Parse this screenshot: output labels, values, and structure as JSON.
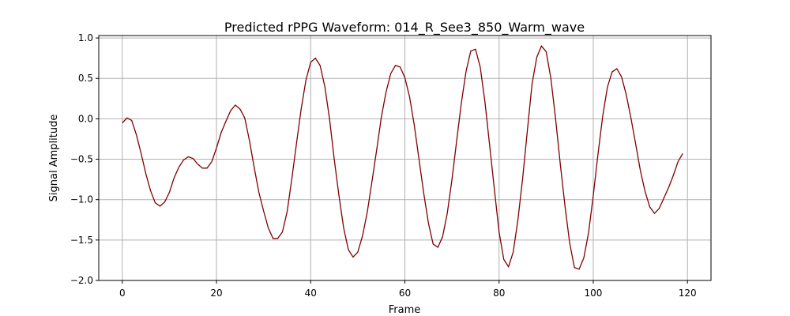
{
  "chart_data": {
    "type": "line",
    "title": "Predicted rPPG Waveform: 014_R_See3_850_Warm_wave",
    "xlabel": "Frame",
    "ylabel": "Signal Amplitude",
    "xlim": [
      -5,
      125
    ],
    "ylim": [
      -2.0,
      1.03
    ],
    "xticks": [
      0,
      20,
      40,
      60,
      80,
      100,
      120
    ],
    "xtick_labels": [
      "0",
      "20",
      "40",
      "60",
      "80",
      "100",
      "120"
    ],
    "yticks": [
      -2.0,
      -1.5,
      -1.0,
      -0.5,
      0.0,
      0.5,
      1.0
    ],
    "ytick_labels": [
      "−2.0",
      "−1.5",
      "−1.0",
      "−0.5",
      "0.0",
      "0.5",
      "1.0"
    ],
    "grid": true,
    "line_color": "#800000",
    "series": [
      {
        "x": [
          0,
          1,
          2,
          3,
          4,
          5,
          6,
          7,
          8,
          9,
          10,
          11,
          12,
          13,
          14,
          15,
          16,
          17,
          18,
          19,
          20,
          21,
          22,
          23,
          24,
          25,
          26,
          27,
          28,
          29,
          30,
          31,
          32,
          33,
          34,
          35,
          36,
          37,
          38,
          39,
          40,
          41,
          42,
          43,
          44,
          45,
          46,
          47,
          48,
          49,
          50,
          51,
          52,
          53,
          54,
          55,
          56,
          57,
          58,
          59,
          60,
          61,
          62,
          63,
          64,
          65,
          66,
          67,
          68,
          69,
          70,
          71,
          72,
          73,
          74,
          75,
          76,
          77,
          78,
          79,
          80,
          81,
          82,
          83,
          84,
          85,
          86,
          87,
          88,
          89,
          90,
          91,
          92,
          93,
          94,
          95,
          96,
          97,
          98,
          99,
          100,
          101,
          102,
          103,
          104,
          105,
          106,
          107,
          108,
          109,
          110,
          111,
          112,
          113,
          114,
          115,
          116,
          117,
          118,
          119
        ],
        "y": [
          -0.05,
          0.01,
          -0.02,
          -0.2,
          -0.43,
          -0.68,
          -0.89,
          -1.04,
          -1.08,
          -1.03,
          -0.91,
          -0.73,
          -0.6,
          -0.51,
          -0.47,
          -0.49,
          -0.56,
          -0.61,
          -0.61,
          -0.53,
          -0.36,
          -0.17,
          -0.03,
          0.1,
          0.17,
          0.12,
          0.01,
          -0.27,
          -0.6,
          -0.91,
          -1.14,
          -1.35,
          -1.48,
          -1.48,
          -1.4,
          -1.15,
          -0.74,
          -0.3,
          0.13,
          0.48,
          0.7,
          0.75,
          0.66,
          0.4,
          0.0,
          -0.5,
          -0.95,
          -1.35,
          -1.62,
          -1.71,
          -1.65,
          -1.45,
          -1.16,
          -0.78,
          -0.39,
          0.02,
          0.33,
          0.56,
          0.66,
          0.64,
          0.51,
          0.27,
          -0.08,
          -0.5,
          -0.92,
          -1.29,
          -1.55,
          -1.59,
          -1.46,
          -1.17,
          -0.75,
          -0.27,
          0.2,
          0.59,
          0.84,
          0.86,
          0.64,
          0.21,
          -0.33,
          -0.87,
          -1.4,
          -1.74,
          -1.83,
          -1.65,
          -1.25,
          -0.74,
          -0.15,
          0.43,
          0.76,
          0.9,
          0.83,
          0.5,
          0.0,
          -0.56,
          -1.08,
          -1.54,
          -1.84,
          -1.86,
          -1.72,
          -1.41,
          -0.95,
          -0.44,
          0.03,
          0.39,
          0.58,
          0.62,
          0.52,
          0.3,
          0.01,
          -0.31,
          -0.64,
          -0.9,
          -1.09,
          -1.17,
          -1.11,
          -0.98,
          -0.85,
          -0.7,
          -0.53,
          -0.43
        ]
      }
    ]
  }
}
